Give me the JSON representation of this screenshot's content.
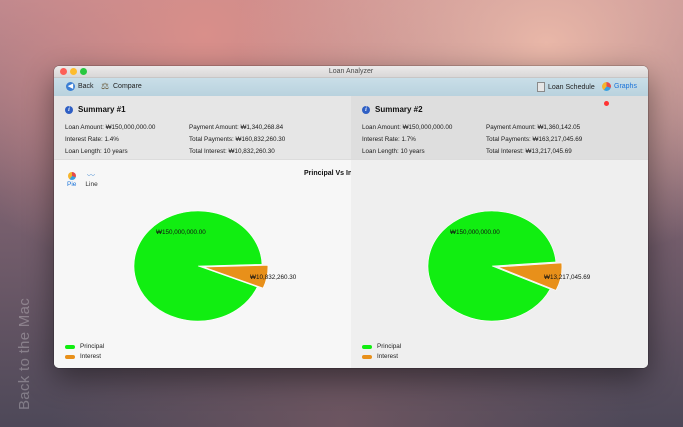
{
  "desktop": {
    "watermark": "Back to the Mac"
  },
  "window": {
    "title": "Loan Analyzer"
  },
  "toolbar": {
    "back_label": "Back",
    "compare_label": "Compare",
    "loan_schedule_label": "Loan Schedule",
    "graphs_label": "Graphs"
  },
  "summaries": [
    {
      "title": "Summary #1",
      "loan_amount": "Loan Amount: ₩150,000,000.00",
      "interest_rate": "Interest Rate: 1.4%",
      "loan_length": "Loan Length: 10 years",
      "payment_amount": "Payment Amount: ₩1,340,268.84",
      "total_payments": "Total Payments: ₩160,832,260.30",
      "total_interest": "Total Interest: ₩10,832,260.30"
    },
    {
      "title": "Summary #2",
      "loan_amount": "Loan Amount: ₩150,000,000.00",
      "interest_rate": "Interest Rate: 1.7%",
      "loan_length": "Loan Length: 10 years",
      "payment_amount": "Payment Amount: ₩1,360,142.05",
      "total_payments": "Total Payments: ₩163,217,045.69",
      "total_interest": "Total Interest: ₩13,217,045.69"
    }
  ],
  "chart_tabs": {
    "pie_label": "Pie",
    "line_label": "Line",
    "selected": "Pie"
  },
  "colors": {
    "principal": "#11ee11",
    "interest": "#e8901a"
  },
  "chart_data": [
    {
      "type": "pie",
      "title": "Principal  Vs Interest Rate",
      "labels": [
        "Principal",
        "Interest"
      ],
      "values": [
        150000000.0,
        10832260.3
      ],
      "data_labels": [
        "₩150,000,000.00",
        "₩10,832,260.30"
      ],
      "legend": [
        "Principal",
        "Interest"
      ]
    },
    {
      "type": "pie",
      "labels": [
        "Principal",
        "Interest"
      ],
      "values": [
        150000000.0,
        13217045.69
      ],
      "data_labels": [
        "₩150,000,000.00",
        "₩13,217,045.69"
      ],
      "legend": [
        "Principal",
        "Interest"
      ]
    }
  ]
}
